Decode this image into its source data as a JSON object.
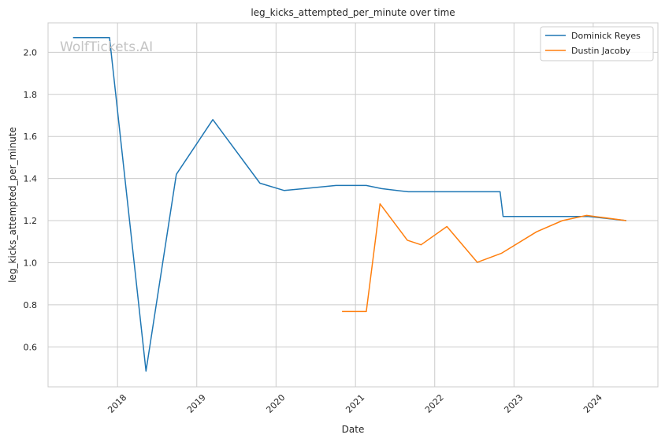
{
  "watermark": "WolfTickets.AI",
  "chart_data": {
    "type": "line",
    "title": "leg_kicks_attempted_per_minute over time",
    "xlabel": "Date",
    "ylabel": "leg_kicks_attempted_per_minute",
    "x_ticks": [
      "2018",
      "2019",
      "2020",
      "2021",
      "2022",
      "2023",
      "2024"
    ],
    "y_ticks": [
      "0.6",
      "0.8",
      "1.0",
      "1.2",
      "1.4",
      "1.6",
      "1.8",
      "2.0"
    ],
    "xlim": [
      "2017-02-15",
      "2024-10-25"
    ],
    "ylim": [
      0.41,
      2.14
    ],
    "grid": true,
    "legend_position": "top-right",
    "series": [
      {
        "name": "Dominick Reyes",
        "color": "#1f77b4",
        "points": [
          [
            "2017-06-10",
            2.07
          ],
          [
            "2017-11-25",
            2.07
          ],
          [
            "2018-05-12",
            0.485
          ],
          [
            "2018-09-29",
            1.42
          ],
          [
            "2019-03-16",
            1.68
          ],
          [
            "2019-10-19",
            1.378
          ],
          [
            "2020-02-08",
            1.343
          ],
          [
            "2020-10-03",
            1.367
          ],
          [
            "2021-02-20",
            1.367
          ],
          [
            "2021-05-01",
            1.352
          ],
          [
            "2021-09-01",
            1.337
          ],
          [
            "2022-10-29",
            1.337
          ],
          [
            "2022-11-12",
            1.22
          ],
          [
            "2023-12-09",
            1.22
          ],
          [
            "2024-06-01",
            1.2
          ]
        ]
      },
      {
        "name": "Dustin Jacoby",
        "color": "#ff7f0e",
        "points": [
          [
            "2020-10-31",
            0.768
          ],
          [
            "2021-02-20",
            0.768
          ],
          [
            "2021-04-24",
            1.28
          ],
          [
            "2021-08-28",
            1.107
          ],
          [
            "2021-10-30",
            1.085
          ],
          [
            "2022-02-26",
            1.172
          ],
          [
            "2022-07-16",
            1.002
          ],
          [
            "2022-10-22",
            1.04
          ],
          [
            "2022-11-05",
            1.045
          ],
          [
            "2023-04-15",
            1.147
          ],
          [
            "2023-08-12",
            1.2
          ],
          [
            "2023-12-02",
            1.225
          ],
          [
            "2024-06-01",
            1.2
          ]
        ]
      }
    ]
  }
}
